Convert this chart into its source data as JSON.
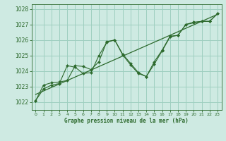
{
  "title": "Graphe pression niveau de la mer (hPa)",
  "background_color": "#ceeae2",
  "grid_color": "#9ecfbf",
  "line_color": "#2d6a2d",
  "xlim": [
    -0.5,
    23.5
  ],
  "ylim": [
    1021.5,
    1028.3
  ],
  "yticks": [
    1022,
    1023,
    1024,
    1025,
    1026,
    1027,
    1028
  ],
  "xticks": [
    0,
    1,
    2,
    3,
    4,
    5,
    6,
    7,
    8,
    9,
    10,
    11,
    12,
    13,
    14,
    15,
    16,
    17,
    18,
    19,
    20,
    21,
    22,
    23
  ],
  "series1_x": [
    0,
    1,
    2,
    3,
    4,
    5,
    6,
    7,
    8,
    9,
    10,
    11,
    12,
    13,
    14,
    15,
    16,
    17,
    18,
    19,
    20,
    21,
    22,
    23
  ],
  "series1_y": [
    1022.1,
    1022.85,
    1023.1,
    1023.2,
    1024.35,
    1024.25,
    1023.85,
    1023.9,
    1025.0,
    1025.85,
    1026.0,
    1025.05,
    1024.4,
    1023.85,
    1023.65,
    1024.45,
    1025.3,
    1026.2,
    1026.3,
    1027.0,
    1027.1,
    1027.2,
    1027.2,
    1027.7
  ],
  "series2_x": [
    0,
    1,
    2,
    3,
    4,
    5,
    6,
    7,
    8,
    9,
    10,
    11,
    12,
    13,
    14,
    15,
    16,
    17,
    18,
    19,
    20,
    21,
    22,
    23
  ],
  "series2_y": [
    1022.1,
    1023.1,
    1023.25,
    1023.3,
    1023.4,
    1024.35,
    1024.3,
    1024.1,
    1024.6,
    1025.9,
    1026.0,
    1025.1,
    1024.5,
    1023.9,
    1023.65,
    1024.6,
    1025.35,
    1026.25,
    1026.3,
    1027.0,
    1027.15,
    1027.2,
    1027.2,
    1027.7
  ],
  "trend_x": [
    0,
    23
  ],
  "trend_y": [
    1022.5,
    1027.65
  ]
}
